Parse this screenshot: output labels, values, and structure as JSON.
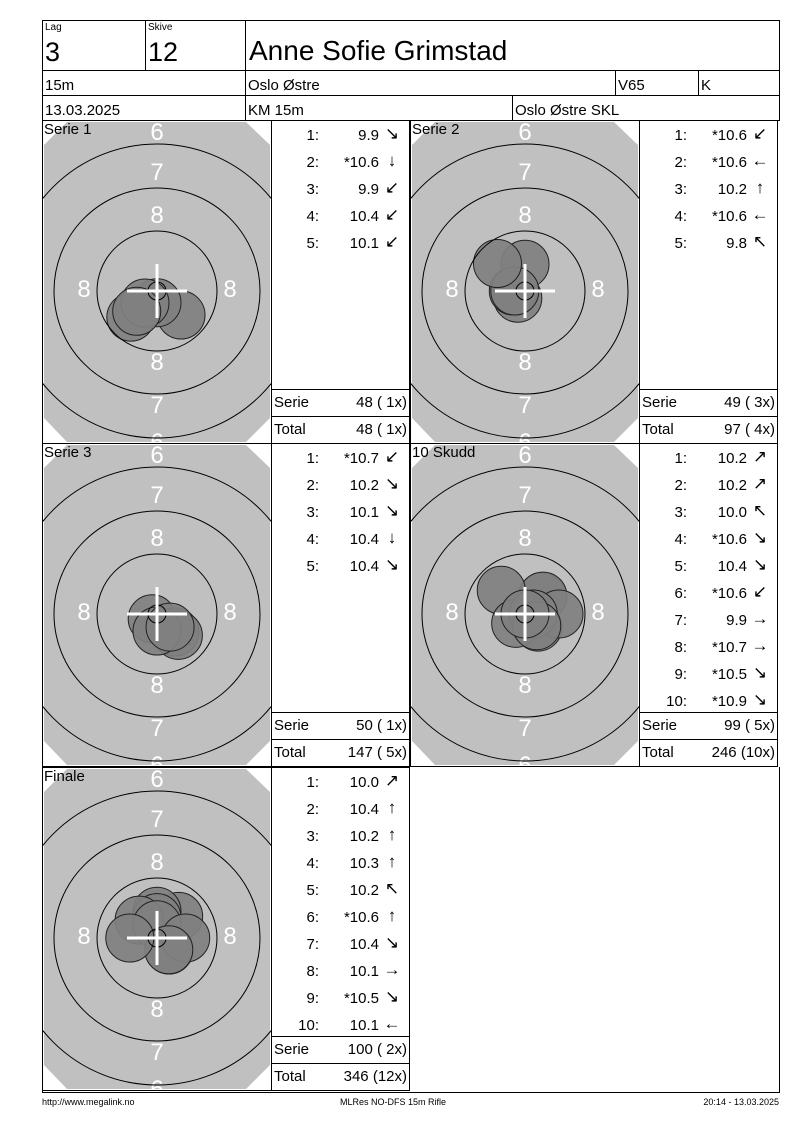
{
  "header": {
    "lag_label": "Lag",
    "lag": "3",
    "skive_label": "Skive",
    "skive": "12",
    "name": "Anne Sofie Grimstad",
    "distance": "15m",
    "club": "Oslo Østre",
    "class": "V65",
    "gender": "K",
    "date": "13.03.2025",
    "competition": "KM 15m",
    "organizer": "Oslo Østre SKL"
  },
  "colors": {
    "target": "#c0c0c0",
    "shot": "#808080",
    "ring": "#000000",
    "label": "#ffffff"
  },
  "panels": [
    {
      "title": "Serie 1",
      "shots": [
        {
          "n": "1:",
          "score": "9.9",
          "dir": "SE"
        },
        {
          "n": "2:",
          "score": "*10.6",
          "dir": "S"
        },
        {
          "n": "3:",
          "score": "9.9",
          "dir": "SW"
        },
        {
          "n": "4:",
          "score": "10.4",
          "dir": "SW"
        },
        {
          "n": "5:",
          "score": "10.1",
          "dir": "SW"
        }
      ],
      "serie_label": "Serie",
      "serie": "48 ( 1x)",
      "total_label": "Total",
      "total": "48 ( 1x)"
    },
    {
      "title": "Serie 2",
      "shots": [
        {
          "n": "1:",
          "score": "*10.6",
          "dir": "SW"
        },
        {
          "n": "2:",
          "score": "*10.6",
          "dir": "W"
        },
        {
          "n": "3:",
          "score": "10.2",
          "dir": "N"
        },
        {
          "n": "4:",
          "score": "*10.6",
          "dir": "W"
        },
        {
          "n": "5:",
          "score": "9.8",
          "dir": "NW"
        }
      ],
      "serie_label": "Serie",
      "serie": "49 ( 3x)",
      "total_label": "Total",
      "total": "97 ( 4x)"
    },
    {
      "title": "Serie 3",
      "shots": [
        {
          "n": "1:",
          "score": "*10.7",
          "dir": "SW"
        },
        {
          "n": "2:",
          "score": "10.2",
          "dir": "SE"
        },
        {
          "n": "3:",
          "score": "10.1",
          "dir": "SE"
        },
        {
          "n": "4:",
          "score": "10.4",
          "dir": "S"
        },
        {
          "n": "5:",
          "score": "10.4",
          "dir": "SE"
        }
      ],
      "serie_label": "Serie",
      "serie": "50 ( 1x)",
      "total_label": "Total",
      "total": "147 ( 5x)"
    },
    {
      "title": "10 Skudd",
      "shots": [
        {
          "n": "1:",
          "score": "10.2",
          "dir": "NE"
        },
        {
          "n": "2:",
          "score": "10.2",
          "dir": "NE"
        },
        {
          "n": "3:",
          "score": "10.0",
          "dir": "NW"
        },
        {
          "n": "4:",
          "score": "*10.6",
          "dir": "SE"
        },
        {
          "n": "5:",
          "score": "10.4",
          "dir": "SE"
        },
        {
          "n": "6:",
          "score": "*10.6",
          "dir": "SW"
        },
        {
          "n": "7:",
          "score": "9.9",
          "dir": "E"
        },
        {
          "n": "8:",
          "score": "*10.7",
          "dir": "E"
        },
        {
          "n": "9:",
          "score": "*10.5",
          "dir": "SE"
        },
        {
          "n": "10:",
          "score": "*10.9",
          "dir": "SE"
        }
      ],
      "serie_label": "Serie",
      "serie": "99 ( 5x)",
      "total_label": "Total",
      "total": "246 (10x)"
    },
    {
      "title": "Finale",
      "shots": [
        {
          "n": "1:",
          "score": "10.0",
          "dir": "NE"
        },
        {
          "n": "2:",
          "score": "10.4",
          "dir": "N"
        },
        {
          "n": "3:",
          "score": "10.2",
          "dir": "N"
        },
        {
          "n": "4:",
          "score": "10.3",
          "dir": "N"
        },
        {
          "n": "5:",
          "score": "10.2",
          "dir": "NW"
        },
        {
          "n": "6:",
          "score": "*10.6",
          "dir": "N"
        },
        {
          "n": "7:",
          "score": "10.4",
          "dir": "SE"
        },
        {
          "n": "8:",
          "score": "10.1",
          "dir": "E"
        },
        {
          "n": "9:",
          "score": "*10.5",
          "dir": "SE"
        },
        {
          "n": "10:",
          "score": "10.1",
          "dir": "W"
        }
      ],
      "serie_label": "Serie",
      "serie": "100 ( 2x)",
      "total_label": "Total",
      "total": "346 (12x)"
    }
  ],
  "ring_labels": {
    "outer": "7",
    "mid": "8",
    "side": "8",
    "edge": "6"
  },
  "footer": {
    "url": "http://www.megalink.no",
    "software": "MLRes NO-DFS 15m Rifle",
    "timestamp": "20:14 - 13.03.2025"
  }
}
